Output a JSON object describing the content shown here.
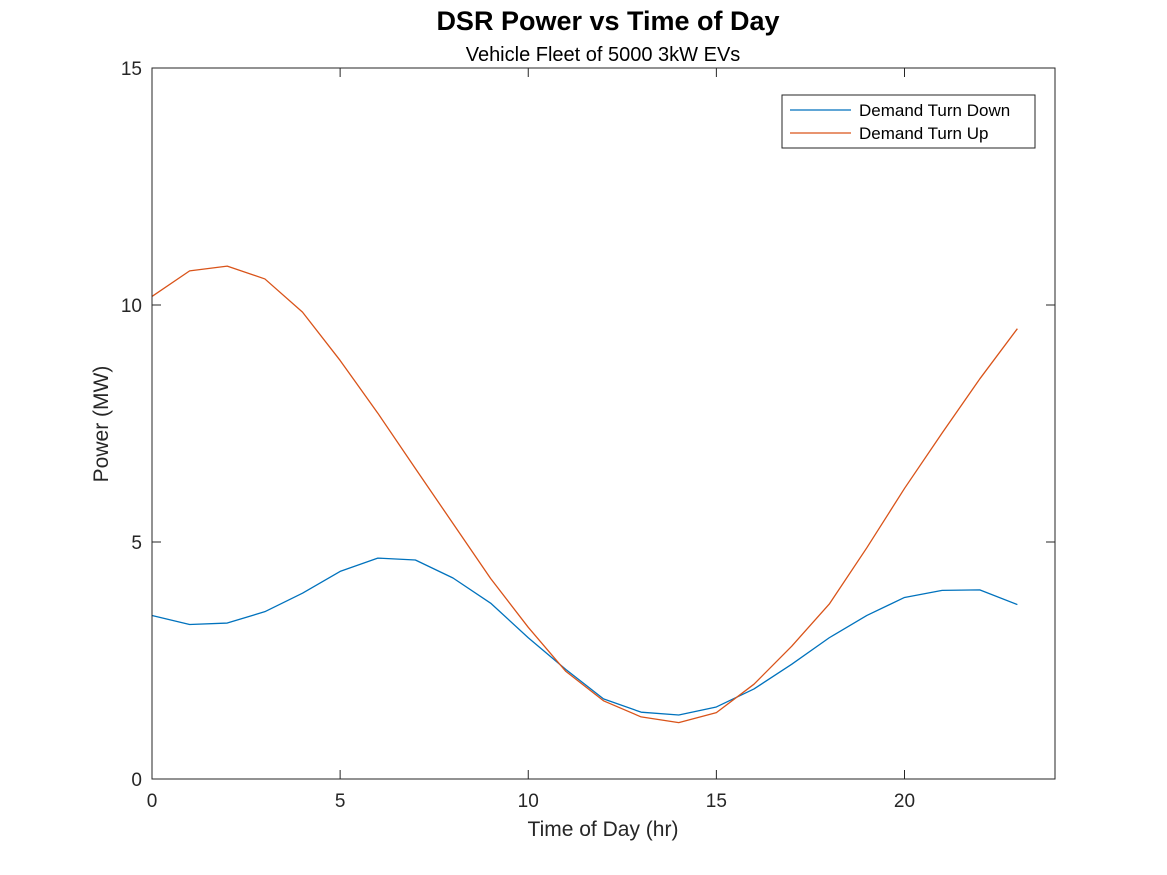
{
  "chart_data": {
    "type": "line",
    "title": "DSR Power vs Time of Day",
    "subtitle": "Vehicle Fleet of 5000  3kW EVs",
    "xlabel": "Time of Day (hr)",
    "ylabel": "Power (MW)",
    "xlim": [
      0,
      24
    ],
    "ylim": [
      0,
      15
    ],
    "xticks": [
      0,
      5,
      10,
      15,
      20
    ],
    "yticks": [
      0,
      5,
      10,
      15
    ],
    "grid": false,
    "legend_position": "top-right",
    "x": [
      0,
      1,
      2,
      3,
      4,
      5,
      6,
      7,
      8,
      9,
      10,
      11,
      12,
      13,
      14,
      15,
      16,
      17,
      18,
      19,
      20,
      21,
      22,
      23
    ],
    "series": [
      {
        "name": "Demand Turn Down",
        "color": "#0072BD",
        "values": [
          3.45,
          3.26,
          3.29,
          3.53,
          3.92,
          4.38,
          4.66,
          4.62,
          4.24,
          3.71,
          2.98,
          2.31,
          1.69,
          1.41,
          1.35,
          1.52,
          1.9,
          2.42,
          2.98,
          3.45,
          3.83,
          3.98,
          3.99,
          3.68
        ]
      },
      {
        "name": "Demand Turn Up",
        "color": "#D95319",
        "values": [
          10.18,
          10.72,
          10.82,
          10.55,
          9.85,
          8.83,
          7.72,
          6.55,
          5.39,
          4.23,
          3.2,
          2.27,
          1.65,
          1.31,
          1.19,
          1.4,
          2.0,
          2.8,
          3.69,
          4.88,
          6.13,
          7.3,
          8.44,
          9.5
        ]
      }
    ]
  }
}
